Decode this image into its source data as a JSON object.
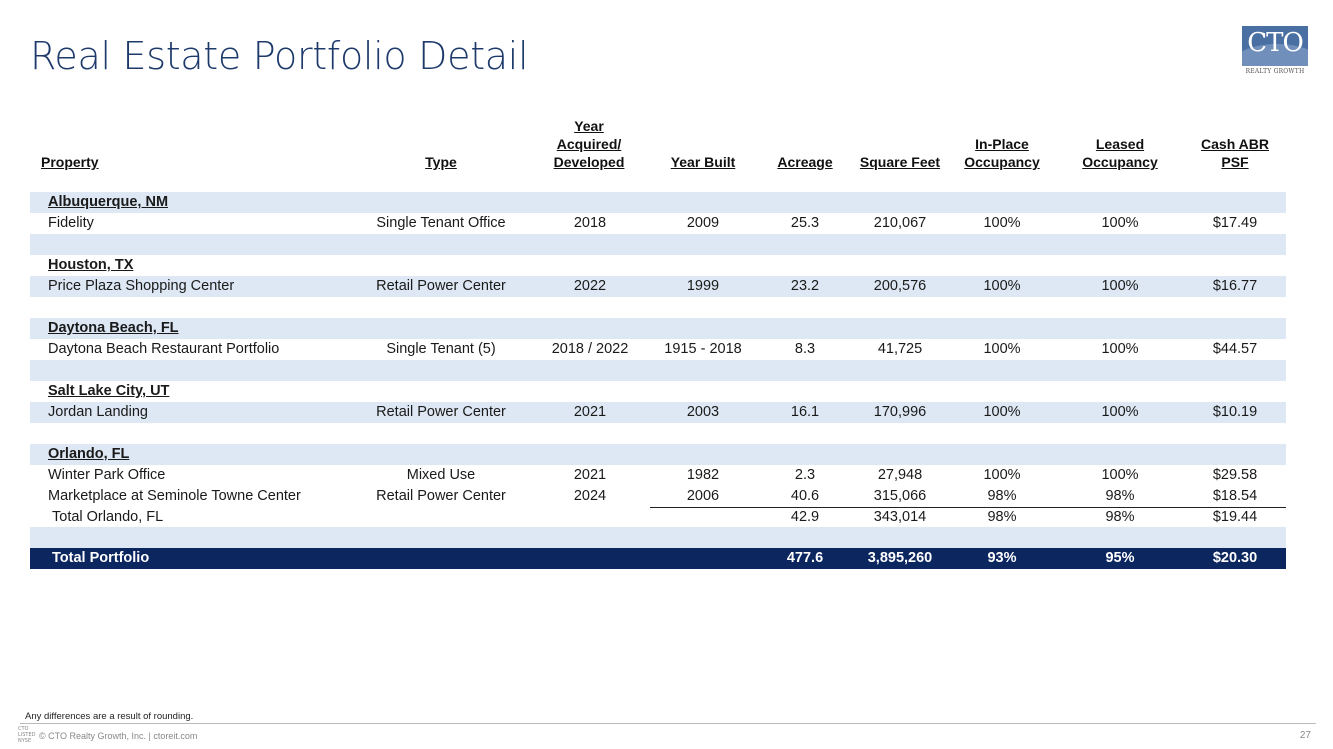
{
  "page": {
    "title": "Real Estate Portfolio Detail"
  },
  "logo": {
    "text": "CTO",
    "subtext": "REALTY GROWTH"
  },
  "headers": {
    "property": "Property",
    "type": "Type",
    "year_acquired": [
      "Year",
      "Acquired/",
      "Developed"
    ],
    "year_built": "Year Built",
    "acreage": "Acreage",
    "square_feet": "Square Feet",
    "in_place": [
      "In-Place",
      "Occupancy"
    ],
    "leased": [
      "Leased",
      "Occupancy"
    ],
    "cash_abr": [
      "Cash ABR",
      "PSF"
    ]
  },
  "regions": {
    "albuquerque": "Albuquerque, NM",
    "houston": "Houston, TX",
    "daytona": "Daytona Beach, FL",
    "salt_lake": "Salt Lake City, UT",
    "orlando": "Orlando, FL"
  },
  "rows": {
    "fidelity": {
      "property": "Fidelity",
      "type": "Single Tenant Office",
      "yacq": "2018",
      "yblt": "2009",
      "acre": "25.3",
      "sqft": "210,067",
      "inp": "100%",
      "lsd": "100%",
      "abr": "$17.49"
    },
    "price_plaza": {
      "property": "Price Plaza Shopping Center",
      "type": "Retail Power Center",
      "yacq": "2022",
      "yblt": "1999",
      "acre": "23.2",
      "sqft": "200,576",
      "inp": "100%",
      "lsd": "100%",
      "abr": "$16.77"
    },
    "daytona_rest": {
      "property": "Daytona Beach Restaurant Portfolio",
      "type": "Single Tenant (5)",
      "yacq": "2018 / 2022",
      "yblt": "1915 - 2018",
      "acre": "8.3",
      "sqft": "41,725",
      "inp": "100%",
      "lsd": "100%",
      "abr": "$44.57"
    },
    "jordan": {
      "property": "Jordan Landing",
      "type": "Retail Power Center",
      "yacq": "2021",
      "yblt": "2003",
      "acre": "16.1",
      "sqft": "170,996",
      "inp": "100%",
      "lsd": "100%",
      "abr": "$10.19"
    },
    "winter_park": {
      "property": "Winter Park Office",
      "type": "Mixed Use",
      "yacq": "2021",
      "yblt": "1982",
      "acre": "2.3",
      "sqft": "27,948",
      "inp": "100%",
      "lsd": "100%",
      "abr": "$29.58"
    },
    "seminole": {
      "property": "Marketplace at Seminole Towne Center",
      "type": "Retail Power Center",
      "yacq": "2024",
      "yblt": "2006",
      "acre": "40.6",
      "sqft": "315,066",
      "inp": "98%",
      "lsd": "98%",
      "abr": "$18.54"
    },
    "total_orlando": {
      "property": "Total Orlando, FL",
      "acre": "42.9",
      "sqft": "343,014",
      "inp": "98%",
      "lsd": "98%",
      "abr": "$19.44"
    }
  },
  "total": {
    "label": "Total Portfolio",
    "acre": "477.6",
    "sqft": "3,895,260",
    "inp": "93%",
    "lsd": "95%",
    "abr": "$20.30"
  },
  "footer": {
    "note": "Any differences are a result of rounding.",
    "logo_lines": [
      "CTO",
      "LISTED",
      "NYSE"
    ],
    "copyright": "© CTO Realty Growth, Inc. | ctoreit.com",
    "page_number": "27"
  }
}
